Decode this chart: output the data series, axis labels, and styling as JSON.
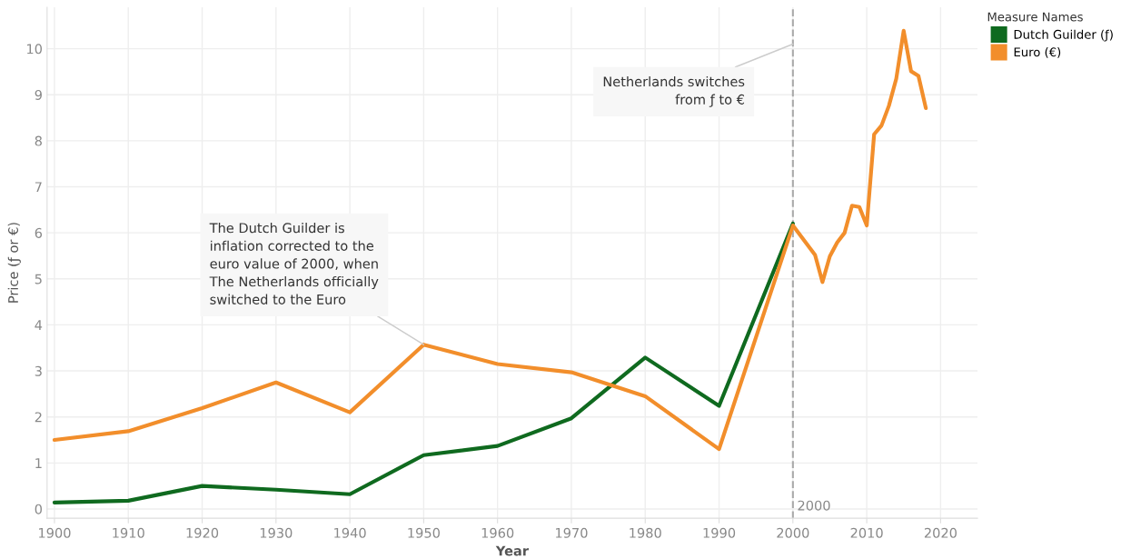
{
  "chart_data": {
    "type": "line",
    "xlabel": "Year",
    "ylabel": "Price (ƒ or €)",
    "legend_title": "Measure Names",
    "legend": "top right",
    "grid": true,
    "line_style": "solid",
    "marker": "none",
    "xlim": [
      1899,
      2025
    ],
    "xticks": [
      1900,
      1910,
      1920,
      1930,
      1940,
      1950,
      1960,
      1970,
      1980,
      1990,
      2000,
      2010,
      2020
    ],
    "ylim": [
      -0.2,
      10.9
    ],
    "yticks": [
      0,
      1,
      2,
      3,
      4,
      5,
      6,
      7,
      8,
      9,
      10
    ],
    "series": [
      {
        "name": "Dutch Guilder (ƒ)",
        "color": "#0f6a1f",
        "x": [
          1900,
          1910,
          1920,
          1930,
          1940,
          1950,
          1960,
          1970,
          1980,
          1990,
          2000
        ],
        "values": [
          0.14,
          0.18,
          0.5,
          0.42,
          0.32,
          1.17,
          1.37,
          1.97,
          3.29,
          2.24,
          6.2
        ]
      },
      {
        "name": "Euro (€)",
        "color": "#f28e2b",
        "x": [
          1900,
          1910,
          1920,
          1930,
          1940,
          1950,
          1960,
          1970,
          1980,
          1990,
          2000,
          2003,
          2004,
          2005,
          2006,
          2007,
          2008,
          2009,
          2010,
          2011,
          2012,
          2013,
          2014,
          2015,
          2016,
          2017,
          2018
        ],
        "values": [
          1.5,
          1.69,
          2.19,
          2.75,
          2.1,
          3.57,
          3.15,
          2.97,
          2.45,
          1.3,
          6.16,
          5.52,
          4.93,
          5.49,
          5.79,
          6.0,
          6.59,
          6.56,
          6.16,
          8.14,
          8.33,
          8.76,
          9.35,
          10.39,
          9.51,
          9.41,
          8.71
        ]
      }
    ],
    "ref_lines": [
      {
        "axis": "x",
        "value": 2000,
        "label": "2000",
        "color": "#aaaaaa",
        "line_style": "dashed"
      }
    ],
    "annotations": [
      {
        "text": "The Dutch Guilder is\ninflation corrected to the\neuro value of 2000, when\nThe Netherlands officially\nswitched to the Euro",
        "x": 1950,
        "y": 3.57
      },
      {
        "text": "Netherlands switches\nfrom ƒ to €",
        "x": 2000,
        "y": 10.1
      }
    ]
  }
}
